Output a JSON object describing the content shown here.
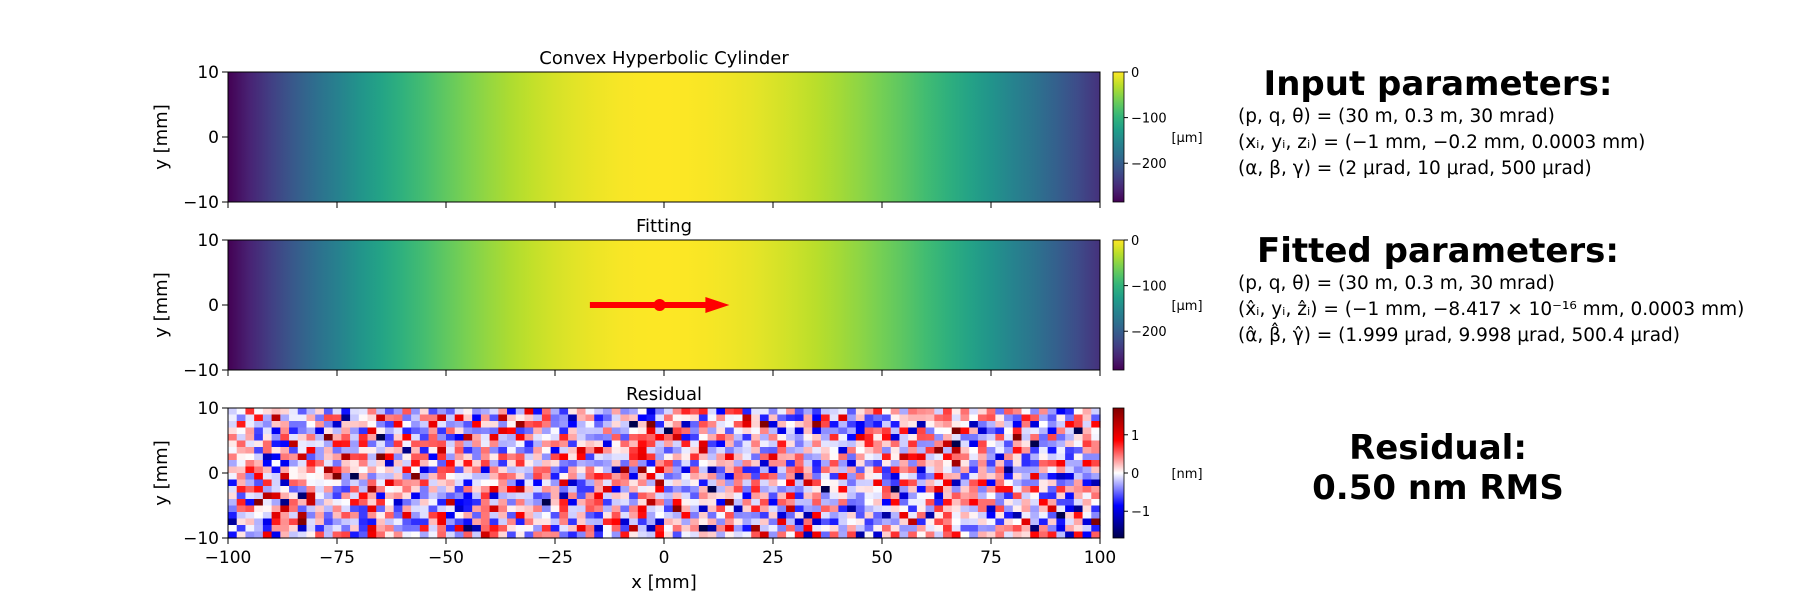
{
  "chart_data": [
    {
      "type": "heatmap",
      "title": "Convex Hyperbolic Cylinder",
      "xlabel": "",
      "ylabel": "y [mm]",
      "xlim": [
        -100,
        100
      ],
      "ylim": [
        -10,
        10
      ],
      "yticks": [
        -10,
        0,
        10
      ],
      "colormap": "viridis",
      "colorbar": {
        "label": "[µm]",
        "ticks": [
          0,
          -100,
          -200
        ],
        "range": [
          -285,
          0
        ]
      },
      "profile": {
        "x_at_peak": 0,
        "value_at_peak": 0,
        "value_at_x_min": -285,
        "value_at_x_max": -245
      },
      "arrow": null
    },
    {
      "type": "heatmap",
      "title": "Fitting",
      "xlabel": "",
      "ylabel": "y [mm]",
      "xlim": [
        -100,
        100
      ],
      "ylim": [
        -10,
        10
      ],
      "yticks": [
        -10,
        0,
        10
      ],
      "colormap": "viridis",
      "colorbar": {
        "label": "[µm]",
        "ticks": [
          0,
          -100,
          -200
        ],
        "range": [
          -285,
          0
        ]
      },
      "profile": {
        "x_at_peak": 0,
        "value_at_peak": 0,
        "value_at_x_min": -285,
        "value_at_x_max": -245
      },
      "arrow": {
        "color": "#ff0000",
        "x_start": -17,
        "x_end": 15,
        "y": 0,
        "marker_x": -1,
        "marker_y": 0
      }
    },
    {
      "type": "heatmap",
      "title": "Residual",
      "xlabel": "x [mm]",
      "ylabel": "y [mm]",
      "xlim": [
        -100,
        100
      ],
      "ylim": [
        -10,
        10
      ],
      "xticks": [
        -100,
        -75,
        -50,
        -25,
        0,
        25,
        50,
        75,
        100
      ],
      "yticks": [
        -10,
        0,
        10
      ],
      "colormap": "seismic",
      "grid": {
        "cols": 100,
        "rows": 20,
        "noise_rms": 0.5
      },
      "colorbar": {
        "label": "[nm]",
        "ticks": [
          1,
          0,
          -1
        ],
        "range": [
          -1.7,
          1.7
        ]
      }
    }
  ],
  "panels": {
    "input": {
      "heading": "Input parameters:",
      "lines": [
        "(p, q, θ) = (30 m, 0.3 m, 30 mrad)",
        "(xᵢ, yᵢ, zᵢ) = (−1 mm, −0.2 mm, 0.0003 mm)",
        "(α, β, γ) = (2 μrad, 10 μrad, 500 μrad)"
      ]
    },
    "fitted": {
      "heading": "Fitted parameters:",
      "lines": [
        "(p, q, θ) = (30 m, 0.3 m, 30 mrad)",
        "(x̂ᵢ, yᵢ, ẑᵢ) = (−1 mm, −8.417 × 10⁻¹⁶ mm, 0.0003 mm)",
        "(α̂, β̂, γ̂) = (1.999 μrad, 9.998 μrad, 500.4 μrad)"
      ]
    },
    "residual": {
      "line1": "Residual:",
      "line2": "0.50 nm RMS"
    }
  }
}
